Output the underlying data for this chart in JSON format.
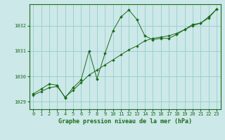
{
  "title": "Graphe pression niveau de la mer (hPa)",
  "bg_color": "#cce8e8",
  "grid_color": "#99cccc",
  "line_color": "#1a6b1a",
  "marker_color": "#1a6b1a",
  "xlim": [
    -0.5,
    23.5
  ],
  "ylim": [
    1028.7,
    1032.85
  ],
  "yticks": [
    1029,
    1030,
    1031,
    1032
  ],
  "xticks": [
    0,
    1,
    2,
    3,
    4,
    5,
    6,
    7,
    8,
    9,
    10,
    11,
    12,
    13,
    14,
    15,
    16,
    17,
    18,
    19,
    20,
    21,
    22,
    23
  ],
  "series1_x": [
    0,
    1,
    2,
    3,
    4,
    5,
    6,
    7,
    8,
    9,
    10,
    11,
    12,
    13,
    14,
    15,
    16,
    17,
    18,
    19,
    20,
    21,
    22,
    23
  ],
  "series1_y": [
    1029.3,
    1029.5,
    1029.7,
    1029.65,
    1029.15,
    1029.55,
    1029.85,
    1031.0,
    1029.9,
    1030.9,
    1031.8,
    1032.35,
    1032.62,
    1032.25,
    1031.6,
    1031.45,
    1031.5,
    1031.5,
    1031.65,
    1031.85,
    1032.05,
    1032.1,
    1032.35,
    1032.65
  ],
  "series2_x": [
    0,
    1,
    2,
    3,
    4,
    5,
    6,
    7,
    8,
    9,
    10,
    11,
    12,
    13,
    14,
    15,
    16,
    17,
    18,
    19,
    20,
    21,
    22,
    23
  ],
  "series2_y": [
    1029.25,
    1029.4,
    1029.55,
    1029.6,
    1029.18,
    1029.45,
    1029.75,
    1030.05,
    1030.25,
    1030.45,
    1030.65,
    1030.85,
    1031.05,
    1031.2,
    1031.4,
    1031.5,
    1031.55,
    1031.6,
    1031.7,
    1031.85,
    1032.0,
    1032.1,
    1032.3,
    1032.65
  ]
}
